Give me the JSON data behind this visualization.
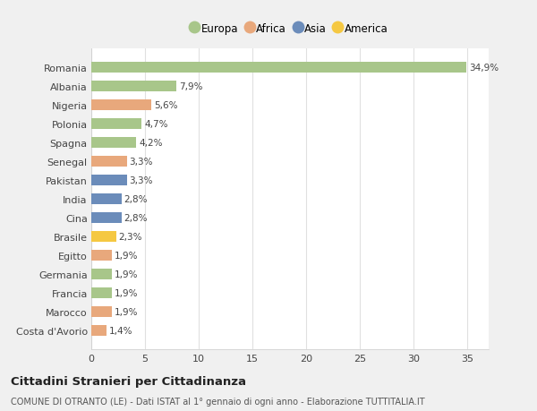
{
  "countries": [
    "Romania",
    "Albania",
    "Nigeria",
    "Polonia",
    "Spagna",
    "Senegal",
    "Pakistan",
    "India",
    "Cina",
    "Brasile",
    "Egitto",
    "Germania",
    "Francia",
    "Marocco",
    "Costa d'Avorio"
  ],
  "values": [
    34.9,
    7.9,
    5.6,
    4.7,
    4.2,
    3.3,
    3.3,
    2.8,
    2.8,
    2.3,
    1.9,
    1.9,
    1.9,
    1.9,
    1.4
  ],
  "labels": [
    "34,9%",
    "7,9%",
    "5,6%",
    "4,7%",
    "4,2%",
    "3,3%",
    "3,3%",
    "2,8%",
    "2,8%",
    "2,3%",
    "1,9%",
    "1,9%",
    "1,9%",
    "1,9%",
    "1,4%"
  ],
  "continent": [
    "Europa",
    "Europa",
    "Africa",
    "Europa",
    "Europa",
    "Africa",
    "Asia",
    "Asia",
    "Asia",
    "America",
    "Africa",
    "Europa",
    "Europa",
    "Africa",
    "Africa"
  ],
  "colors": {
    "Europa": "#a8c68a",
    "Africa": "#e8a87c",
    "Asia": "#6b8cba",
    "America": "#f5c842"
  },
  "legend_order": [
    "Europa",
    "Africa",
    "Asia",
    "America"
  ],
  "legend_colors": [
    "#a8c68a",
    "#e8a87c",
    "#6b8cba",
    "#f5c842"
  ],
  "xlim": [
    0,
    37
  ],
  "xticks": [
    0,
    5,
    10,
    15,
    20,
    25,
    30,
    35
  ],
  "fig_bg_color": "#f0f0f0",
  "plot_bg_color": "#ffffff",
  "grid_color": "#e0e0e0",
  "title": "Cittadini Stranieri per Cittadinanza",
  "subtitle": "COMUNE DI OTRANTO (LE) - Dati ISTAT al 1° gennaio di ogni anno - Elaborazione TUTTITALIA.IT",
  "bar_height": 0.55
}
